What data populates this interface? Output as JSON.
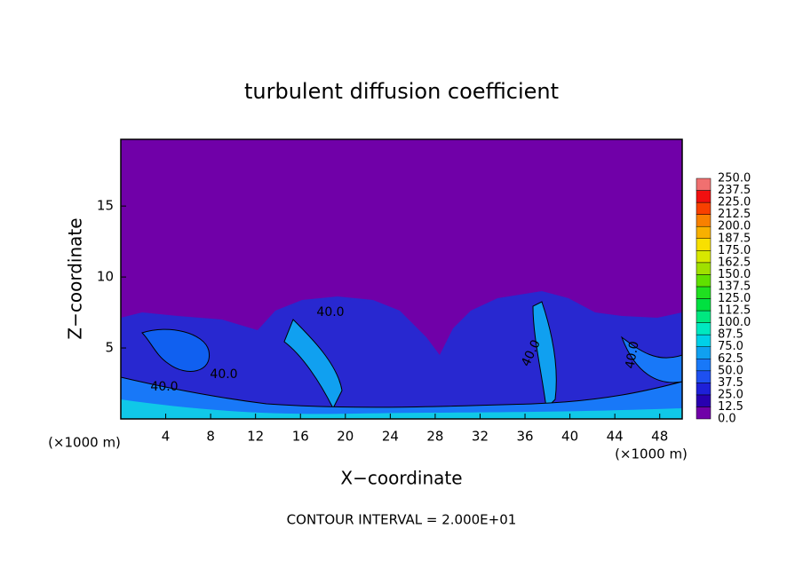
{
  "chart_data": {
    "type": "contour",
    "title": "turbulent diffusion coefficient",
    "xlabel": "X−coordinate",
    "ylabel": "Z−coordinate",
    "x_unit": "(×1000 m)",
    "footer": "CONTOUR INTERVAL = 2.000E+01",
    "contour_labels": [
      "40.0",
      "40.0",
      "40.0",
      "40.0",
      "40.0"
    ],
    "xlim": [
      0,
      50
    ],
    "ylim": [
      0,
      19.7
    ],
    "xticks": [
      4,
      8,
      12,
      16,
      20,
      24,
      28,
      32,
      36,
      40,
      44,
      48
    ],
    "yticks": [
      5,
      10,
      15
    ],
    "background": "#7000a8",
    "colorbar": {
      "levels": [
        {
          "value": 0,
          "label": "0.0"
        },
        {
          "value": 12.5,
          "label": "12.5"
        },
        {
          "value": 25,
          "label": "25.0"
        },
        {
          "value": 37.5,
          "label": "37.5"
        },
        {
          "value": 50,
          "label": "50.0"
        },
        {
          "value": 62.5,
          "label": "62.5"
        },
        {
          "value": 75,
          "label": "75.0"
        },
        {
          "value": 87.5,
          "label": "87.5"
        },
        {
          "value": 100,
          "label": "100.0"
        },
        {
          "value": 112.5,
          "label": "112.5"
        },
        {
          "value": 125,
          "label": "125.0"
        },
        {
          "value": 137.5,
          "label": "137.5"
        },
        {
          "value": 150,
          "label": "150.0"
        },
        {
          "value": 162.5,
          "label": "162.5"
        },
        {
          "value": 175,
          "label": "175.0"
        },
        {
          "value": 187.5,
          "label": "187.5"
        },
        {
          "value": 200,
          "label": "200.0"
        },
        {
          "value": 212.5,
          "label": "212.5"
        },
        {
          "value": 225,
          "label": "225.0"
        },
        {
          "value": 237.5,
          "label": "237.5"
        },
        {
          "value": 250,
          "label": "250.0"
        }
      ],
      "colors": [
        "#7000a8",
        "#2800b0",
        "#1e20d8",
        "#1e50f0",
        "#1878f8",
        "#10a0f0",
        "#00d0e8",
        "#00e8c0",
        "#00e880",
        "#00e040",
        "#20e020",
        "#60e000",
        "#a0e000",
        "#d8e800",
        "#f8e000",
        "#f8b000",
        "#f88000",
        "#f84000",
        "#f01010",
        "#f07070"
      ]
    }
  }
}
